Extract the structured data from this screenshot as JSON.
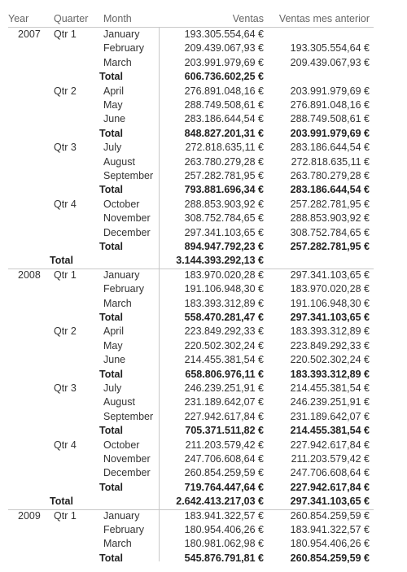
{
  "headers": {
    "year": "Year",
    "quarter": "Quarter",
    "month": "Month",
    "ventas": "Ventas",
    "prev": "Ventas mes anterior"
  },
  "total_label": "Total",
  "rows": [
    {
      "year": "2007",
      "quarter": "Qtr 1",
      "month": "January",
      "ventas": "193.305.554,64 €",
      "prev": ""
    },
    {
      "month": "February",
      "ventas": "209.439.067,93 €",
      "prev": "193.305.554,64 €"
    },
    {
      "month": "March",
      "ventas": "203.991.979,69 €",
      "prev": "209.439.067,93 €"
    },
    {
      "type": "qtotal",
      "ventas": "606.736.602,25 €",
      "prev": ""
    },
    {
      "quarter": "Qtr 2",
      "month": "April",
      "ventas": "276.891.048,16 €",
      "prev": "203.991.979,69 €"
    },
    {
      "month": "May",
      "ventas": "288.749.508,61 €",
      "prev": "276.891.048,16 €"
    },
    {
      "month": "June",
      "ventas": "283.186.644,54 €",
      "prev": "288.749.508,61 €"
    },
    {
      "type": "qtotal",
      "ventas": "848.827.201,31 €",
      "prev": "203.991.979,69 €"
    },
    {
      "quarter": "Qtr 3",
      "month": "July",
      "ventas": "272.818.635,11 €",
      "prev": "283.186.644,54 €"
    },
    {
      "month": "August",
      "ventas": "263.780.279,28 €",
      "prev": "272.818.635,11 €"
    },
    {
      "month": "September",
      "ventas": "257.282.781,95 €",
      "prev": "263.780.279,28 €"
    },
    {
      "type": "qtotal",
      "ventas": "793.881.696,34 €",
      "prev": "283.186.644,54 €"
    },
    {
      "quarter": "Qtr 4",
      "month": "October",
      "ventas": "288.853.903,92 €",
      "prev": "257.282.781,95 €"
    },
    {
      "month": "November",
      "ventas": "308.752.784,65 €",
      "prev": "288.853.903,92 €"
    },
    {
      "month": "December",
      "ventas": "297.341.103,65 €",
      "prev": "308.752.784,65 €"
    },
    {
      "type": "qtotal",
      "ventas": "894.947.792,23 €",
      "prev": "257.282.781,95 €"
    },
    {
      "type": "ytotal",
      "ventas": "3.144.393.292,13 €",
      "prev": ""
    },
    {
      "year": "2008",
      "quarter": "Qtr 1",
      "month": "January",
      "ventas": "183.970.020,28 €",
      "prev": "297.341.103,65 €"
    },
    {
      "month": "February",
      "ventas": "191.106.948,30 €",
      "prev": "183.970.020,28 €"
    },
    {
      "month": "March",
      "ventas": "183.393.312,89 €",
      "prev": "191.106.948,30 €"
    },
    {
      "type": "qtotal",
      "ventas": "558.470.281,47 €",
      "prev": "297.341.103,65 €"
    },
    {
      "quarter": "Qtr 2",
      "month": "April",
      "ventas": "223.849.292,33 €",
      "prev": "183.393.312,89 €"
    },
    {
      "month": "May",
      "ventas": "220.502.302,24 €",
      "prev": "223.849.292,33 €"
    },
    {
      "month": "June",
      "ventas": "214.455.381,54 €",
      "prev": "220.502.302,24 €"
    },
    {
      "type": "qtotal",
      "ventas": "658.806.976,11 €",
      "prev": "183.393.312,89 €"
    },
    {
      "quarter": "Qtr 3",
      "month": "July",
      "ventas": "246.239.251,91 €",
      "prev": "214.455.381,54 €"
    },
    {
      "month": "August",
      "ventas": "231.189.642,07 €",
      "prev": "246.239.251,91 €"
    },
    {
      "month": "September",
      "ventas": "227.942.617,84 €",
      "prev": "231.189.642,07 €"
    },
    {
      "type": "qtotal",
      "ventas": "705.371.511,82 €",
      "prev": "214.455.381,54 €"
    },
    {
      "quarter": "Qtr 4",
      "month": "October",
      "ventas": "211.203.579,42 €",
      "prev": "227.942.617,84 €"
    },
    {
      "month": "November",
      "ventas": "247.706.608,64 €",
      "prev": "211.203.579,42 €"
    },
    {
      "month": "December",
      "ventas": "260.854.259,59 €",
      "prev": "247.706.608,64 €"
    },
    {
      "type": "qtotal",
      "ventas": "719.764.447,64 €",
      "prev": "227.942.617,84 €"
    },
    {
      "type": "ytotal",
      "ventas": "2.642.413.217,03 €",
      "prev": "297.341.103,65 €"
    },
    {
      "year": "2009",
      "quarter": "Qtr 1",
      "month": "January",
      "ventas": "183.941.322,57 €",
      "prev": "260.854.259,59 €"
    },
    {
      "month": "February",
      "ventas": "180.954.406,26 €",
      "prev": "183.941.322,57 €"
    },
    {
      "month": "March",
      "ventas": "180.981.062,98 €",
      "prev": "180.954.406,26 €"
    },
    {
      "type": "qtotal",
      "ventas": "545.876.791,81 €",
      "prev": "260.854.259,59 €"
    }
  ]
}
